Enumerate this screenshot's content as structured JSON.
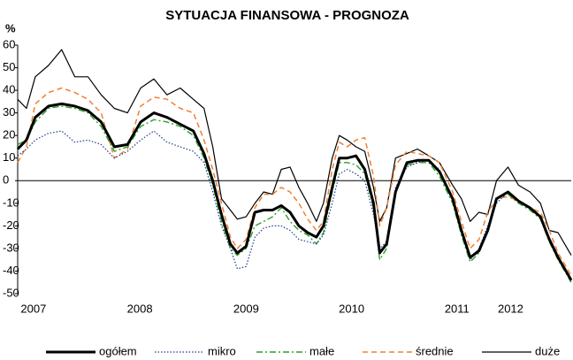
{
  "chart_data": {
    "type": "line",
    "title": "SYTUACJA FINANSOWA - PROGNOZA",
    "y_label": "%",
    "x": [
      0,
      1,
      2,
      3.5,
      5,
      6.5,
      8,
      9.5,
      11,
      12.5,
      14,
      15.5,
      17,
      18.5,
      20,
      21.2,
      22.2,
      23.2,
      24.2,
      25,
      26,
      27,
      28,
      29,
      30,
      31,
      32,
      33,
      34,
      34.8,
      35.8,
      36.6,
      37.5,
      38.5,
      39.5,
      40.5,
      41.2,
      42,
      43,
      44.3,
      45.5,
      46.8,
      48,
      49.5,
      50.5,
      51.5,
      52.5,
      53.5,
      54.5,
      55.8,
      57,
      58.3,
      59.5,
      60.5,
      61.5,
      63
    ],
    "xlim": [
      0,
      63
    ],
    "xticks": [
      {
        "value": 1.8,
        "label": "2007"
      },
      {
        "value": 13.9,
        "label": "2008"
      },
      {
        "value": 26,
        "label": "2009"
      },
      {
        "value": 38,
        "label": "2010"
      },
      {
        "value": 50,
        "label": "2011"
      },
      {
        "value": 56.1,
        "label": "2012"
      }
    ],
    "ylim": [
      -50,
      60
    ],
    "yticks": [
      -50,
      -40,
      -30,
      -20,
      -10,
      0,
      10,
      20,
      30,
      40,
      50,
      60
    ],
    "grid": false,
    "legend": "bottom",
    "series": [
      {
        "name": "ogółem",
        "color": "#000000",
        "linestyle": "solid",
        "linewidth": 3,
        "values": [
          14,
          18,
          28,
          33,
          34,
          33,
          31,
          26,
          15,
          16,
          26,
          30,
          28,
          25,
          22,
          12,
          0,
          -15,
          -28,
          -32,
          -29,
          -14,
          -13,
          -13,
          -11,
          -14,
          -20,
          -23,
          -25,
          -20,
          -3,
          10,
          10,
          11,
          5,
          -10,
          -32,
          -28,
          -5,
          8,
          9,
          9,
          4,
          -8,
          -22,
          -34,
          -31,
          -22,
          -8,
          -5,
          -9,
          -12,
          -16,
          -26,
          -34,
          -44
        ]
      },
      {
        "name": "mikro",
        "color": "#1f3c88",
        "linestyle": "dotted",
        "linewidth": 1.2,
        "values": [
          11,
          14,
          18,
          21,
          22,
          17,
          18,
          16,
          10,
          13,
          18,
          22,
          17,
          15,
          13,
          8,
          -5,
          -20,
          -30,
          -39,
          -38,
          -25,
          -21,
          -20,
          -20,
          -22,
          -26,
          -27,
          -28,
          -24,
          -10,
          3,
          5,
          3,
          0,
          -15,
          -30,
          -27,
          -3,
          6,
          8,
          9,
          5,
          -8,
          -22,
          -35,
          -30,
          -20,
          -10,
          -5,
          -9,
          -12,
          -16,
          -25,
          -33,
          -45
        ]
      },
      {
        "name": "małe",
        "color": "#2ca02c",
        "linestyle": "dashdot",
        "linewidth": 1.4,
        "values": [
          16,
          18,
          26,
          32,
          33,
          32,
          30,
          24,
          13,
          15,
          24,
          27,
          26,
          24,
          20,
          10,
          -2,
          -18,
          -30,
          -33,
          -30,
          -20,
          -18,
          -16,
          -12,
          -18,
          -22,
          -24,
          -28,
          -23,
          -5,
          8,
          8,
          7,
          3,
          -12,
          -35,
          -30,
          -5,
          7,
          8,
          8,
          2,
          -10,
          -24,
          -36,
          -32,
          -22,
          -8,
          -6,
          -10,
          -13,
          -17,
          -27,
          -35,
          -45
        ]
      },
      {
        "name": "średnie",
        "color": "#f08030",
        "linestyle": "dashed",
        "linewidth": 1.5,
        "values": [
          8,
          15,
          34,
          39,
          41,
          39,
          36,
          30,
          10,
          14,
          33,
          37,
          36,
          32,
          30,
          18,
          5,
          -10,
          -25,
          -30,
          -26,
          -12,
          -6,
          -6,
          -3,
          -5,
          -10,
          -17,
          -22,
          -18,
          5,
          17,
          15,
          18,
          19,
          2,
          -20,
          -12,
          7,
          13,
          12,
          11,
          8,
          -5,
          -18,
          -30,
          -26,
          -14,
          -8,
          -7,
          -9,
          -12,
          -14,
          -22,
          -32,
          -42
        ]
      },
      {
        "name": "duże",
        "color": "#000000",
        "linestyle": "solid",
        "linewidth": 1.2,
        "values": [
          36,
          32,
          46,
          51,
          58,
          46,
          46,
          38,
          32,
          30,
          41,
          45,
          38,
          41,
          36,
          32,
          15,
          -8,
          -13,
          -17,
          -16,
          -10,
          -5,
          -6,
          5,
          6,
          -3,
          -10,
          -18,
          -10,
          10,
          20,
          18,
          15,
          13,
          -3,
          -18,
          -12,
          10,
          12,
          14,
          11,
          8,
          -2,
          -8,
          -18,
          -14,
          -15,
          0,
          6,
          -2,
          -5,
          -10,
          -22,
          -23,
          -33
        ]
      }
    ]
  }
}
